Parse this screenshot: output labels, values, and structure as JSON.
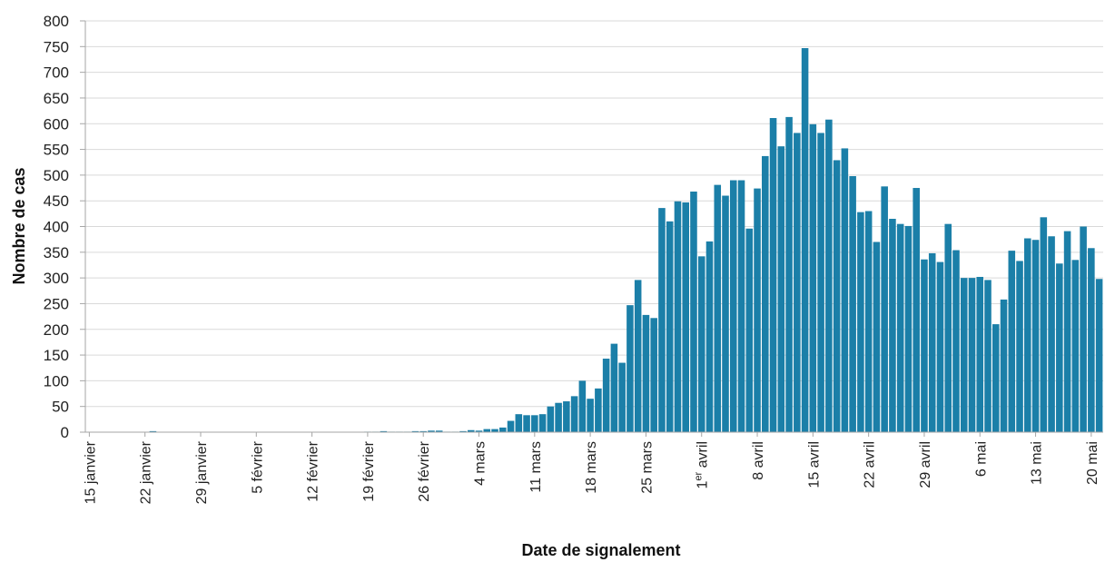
{
  "chart_data": {
    "type": "bar",
    "xlabel": "Date de signalement",
    "ylabel": "Nombre de cas",
    "ylim": [
      0,
      800
    ],
    "yticks": [
      0,
      50,
      100,
      150,
      200,
      250,
      300,
      350,
      400,
      450,
      500,
      550,
      600,
      650,
      700,
      750,
      800
    ],
    "grid": "horizontal",
    "start_date": "2020-01-15",
    "tick_labels": [
      {
        "day": 0,
        "label": "15 janvier"
      },
      {
        "day": 7,
        "label": "22 janvier"
      },
      {
        "day": 14,
        "label": "29 janvier"
      },
      {
        "day": 21,
        "label": "5 février"
      },
      {
        "day": 28,
        "label": "12 février"
      },
      {
        "day": 35,
        "label": "19 février"
      },
      {
        "day": 42,
        "label": "26 février"
      },
      {
        "day": 49,
        "label": "4 mars"
      },
      {
        "day": 56,
        "label": "11 mars"
      },
      {
        "day": 63,
        "label": "18 mars"
      },
      {
        "day": 70,
        "label": "25 mars"
      },
      {
        "day": 77,
        "label": "1er avril",
        "main": "1",
        "sup": "er",
        "rest": " avril"
      },
      {
        "day": 84,
        "label": "8 avril"
      },
      {
        "day": 91,
        "label": "15 avril"
      },
      {
        "day": 98,
        "label": "22 avril"
      },
      {
        "day": 105,
        "label": "29 avril"
      },
      {
        "day": 112,
        "label": "6 mai"
      },
      {
        "day": 119,
        "label": "13 mai"
      },
      {
        "day": 126,
        "label": "20 mai"
      }
    ],
    "colors": {
      "bar": "#1b7fa8",
      "bar_recent": "#6a3b7c",
      "grid": "#d9d9d9",
      "axis": "#a6a6a6"
    },
    "values": [
      0,
      0,
      0,
      0,
      0,
      0,
      0,
      0,
      2,
      0,
      0,
      0,
      0,
      0,
      0,
      0,
      0,
      0,
      0,
      0,
      0,
      0,
      0,
      0,
      0,
      0,
      0,
      0,
      0,
      0,
      0,
      0,
      0,
      0,
      0,
      1,
      1,
      2,
      1,
      1,
      1,
      2,
      2,
      3,
      3,
      1,
      1,
      2,
      4,
      3,
      6,
      6,
      9,
      22,
      35,
      33,
      33,
      35,
      50,
      57,
      60,
      70,
      100,
      65,
      85,
      143,
      172,
      135,
      247,
      296,
      228,
      222,
      436,
      410,
      449,
      447,
      468,
      342,
      371,
      481,
      460,
      490,
      490,
      396,
      474,
      537,
      611,
      556,
      613,
      582,
      747,
      599,
      582,
      608,
      529,
      552,
      498,
      428,
      430,
      370,
      478,
      415,
      405,
      401,
      475,
      336,
      348,
      331,
      405,
      354,
      300,
      300,
      302,
      296,
      210,
      258,
      353,
      333,
      377,
      374,
      418,
      381,
      328,
      391,
      335,
      400,
      358,
      298
    ],
    "recent_from_index": 140
  }
}
